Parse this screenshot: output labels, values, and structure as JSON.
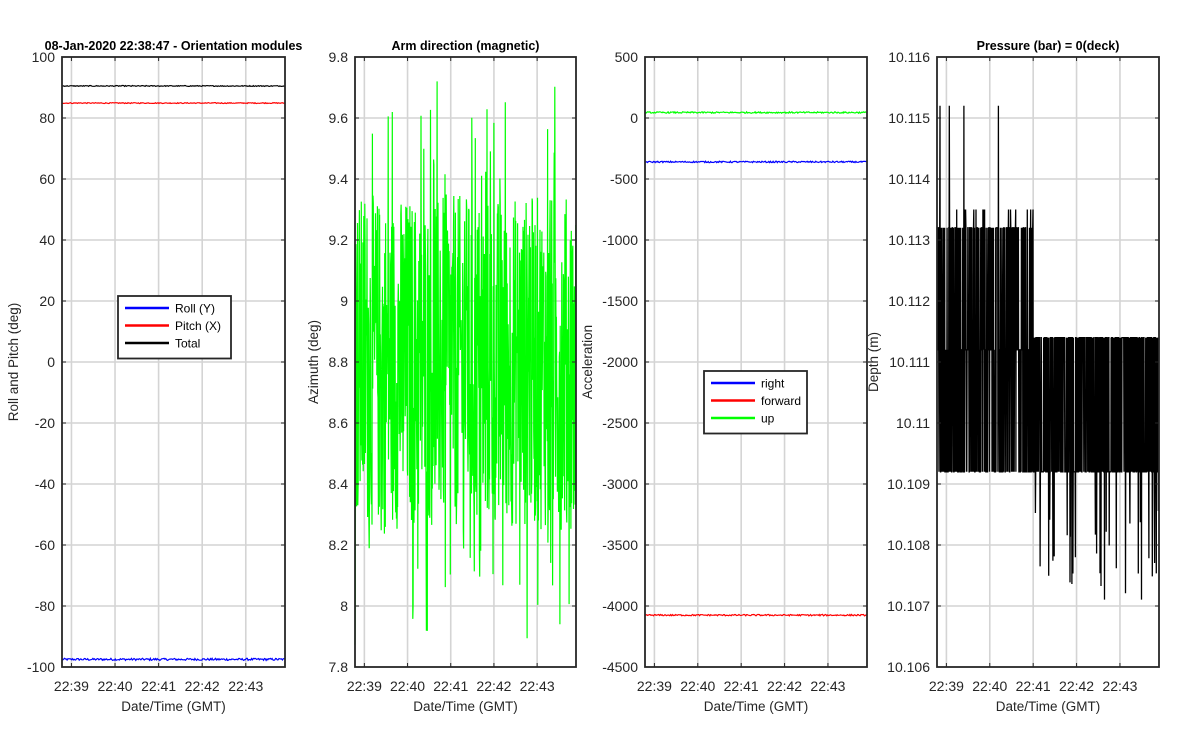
{
  "figure": {
    "background": "#ffffff"
  },
  "chart_data": [
    {
      "type": "line",
      "title": "08-Jan-2020 22:38:47 - Orientation modules",
      "xlabel": "Date/Time (GMT)",
      "ylabel": "Roll and Pitch (deg)",
      "ylim": [
        -100,
        100
      ],
      "yticks": [
        -100,
        -80,
        -60,
        -40,
        -20,
        0,
        20,
        40,
        60,
        80,
        100
      ],
      "xticks": [
        "22:39",
        "22:40",
        "22:41",
        "22:42",
        "22:43"
      ],
      "grid": true,
      "legend": {
        "placement": "center",
        "entries": [
          "Roll (Y)",
          "Pitch (X)",
          "Total"
        ]
      },
      "series": [
        {
          "name": "Roll (Y)",
          "color": "#0000ff",
          "mean": -97.5,
          "noise": 0.35
        },
        {
          "name": "Pitch (X)",
          "color": "#ff0000",
          "mean": 84.9,
          "noise": 0.15
        },
        {
          "name": "Total",
          "color": "#000000",
          "mean": 90.5,
          "noise": 0.15
        }
      ]
    },
    {
      "type": "line",
      "title": "Arm direction (magnetic)",
      "xlabel": "Date/Time (GMT)",
      "ylabel": "Azimuth (deg)",
      "ylim": [
        7.8,
        9.8
      ],
      "yticks": [
        7.8,
        8,
        8.2,
        8.4,
        8.6,
        8.8,
        9,
        9.2,
        9.4,
        9.6,
        9.8
      ],
      "xticks": [
        "22:39",
        "22:40",
        "22:41",
        "22:42",
        "22:43"
      ],
      "grid": true,
      "legend": null,
      "series": [
        {
          "name": "Azimuth",
          "color": "#00ff00",
          "mean": 8.8,
          "range": [
            7.87,
            9.73
          ],
          "behavior": "noisy"
        }
      ]
    },
    {
      "type": "line",
      "title": "",
      "xlabel": "Date/Time (GMT)",
      "ylabel": "Acceleration",
      "ylim": [
        -4500,
        500
      ],
      "yticks": [
        -4500,
        -4000,
        -3500,
        -3000,
        -2500,
        -2000,
        -1500,
        -1000,
        -500,
        0,
        500
      ],
      "xticks": [
        "22:39",
        "22:40",
        "22:41",
        "22:42",
        "22:43"
      ],
      "grid": true,
      "legend": {
        "placement": "center",
        "entries": [
          "right",
          "forward",
          "up"
        ]
      },
      "series": [
        {
          "name": "right",
          "color": "#0000ff",
          "mean": -360,
          "noise": 6
        },
        {
          "name": "forward",
          "color": "#ff0000",
          "mean": -4075,
          "noise": 6
        },
        {
          "name": "up",
          "color": "#00ff00",
          "mean": 45,
          "noise": 6
        }
      ]
    },
    {
      "type": "line",
      "title": "Pressure (bar) = 0(deck)",
      "xlabel": "Date/Time (GMT)",
      "ylabel": "Depth (m)",
      "ylim": [
        10.106,
        10.116
      ],
      "yticks": [
        10.106,
        10.107,
        10.108,
        10.109,
        10.11,
        10.111,
        10.112,
        10.113,
        10.114,
        10.115,
        10.116
      ],
      "xticks": [
        "22:39",
        "22:40",
        "22:41",
        "22:42",
        "22:43"
      ],
      "grid": true,
      "legend": null,
      "series": [
        {
          "name": "Depth",
          "color": "#000000",
          "levels_first_half": [
            10.1092,
            10.1112,
            10.1132
          ],
          "levels_second_half": [
            10.1092,
            10.1114
          ],
          "step_time": "22:41",
          "spikes_high": 10.1152,
          "spikes_low": 10.1071
        }
      ]
    }
  ]
}
